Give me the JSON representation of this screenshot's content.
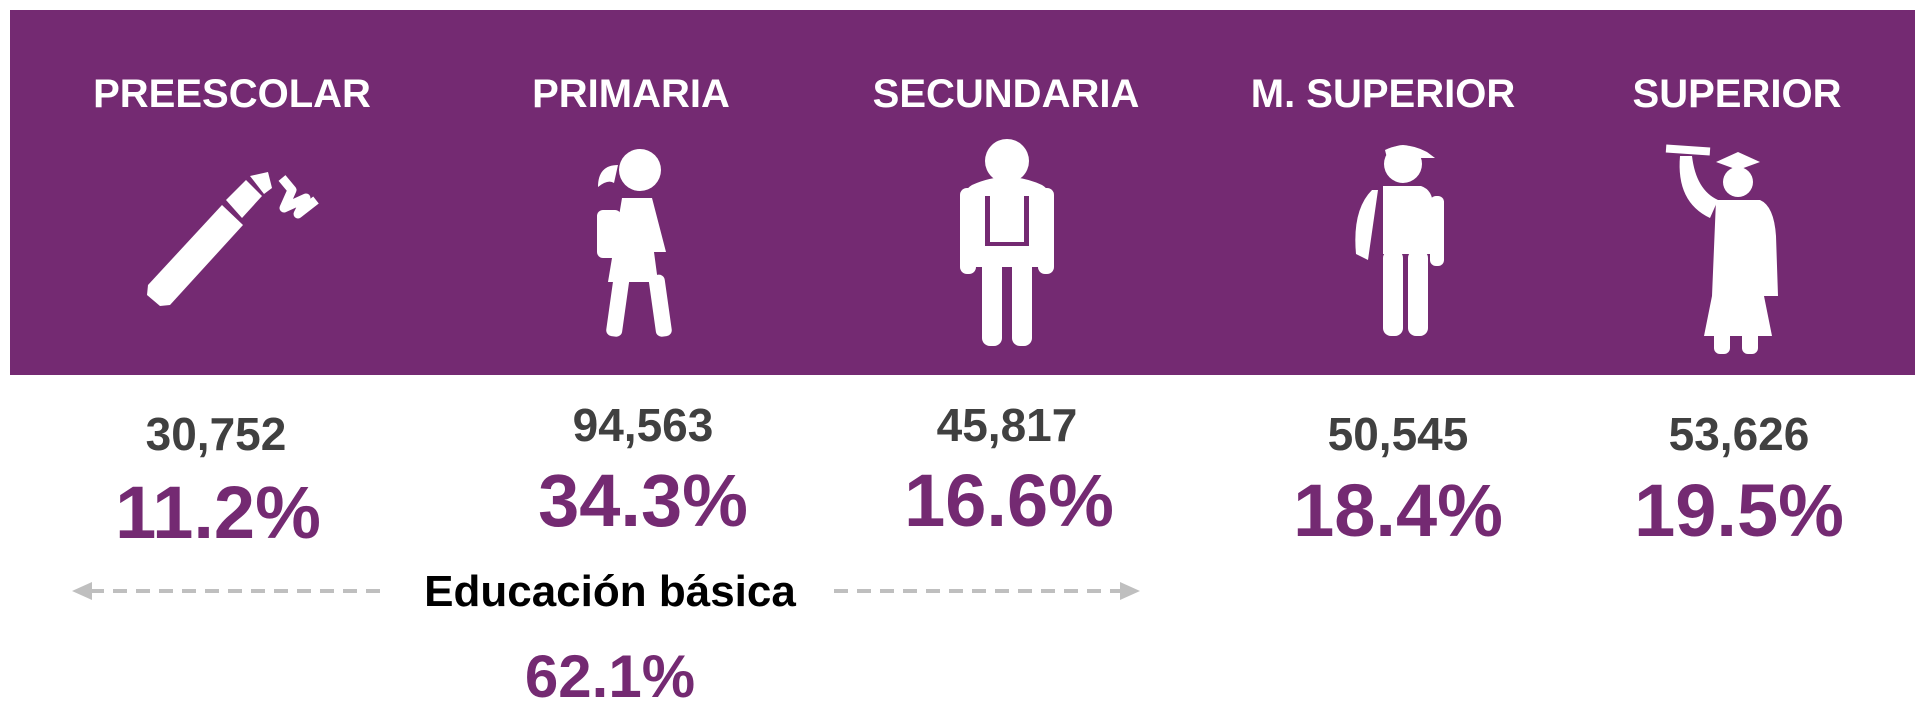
{
  "levels": [
    {
      "name": "PREESCOLAR",
      "count": "30,752",
      "percent": "11.2%"
    },
    {
      "name": "PRIMARIA",
      "count": "94,563",
      "percent": "34.3%"
    },
    {
      "name": "SECUNDARIA",
      "count": "45,817",
      "percent": "16.6%"
    },
    {
      "name": "M. SUPERIOR",
      "count": "50,545",
      "percent": "18.4%"
    },
    {
      "name": "SUPERIOR",
      "count": "53,626",
      "percent": "19.5%"
    }
  ],
  "basic": {
    "label": "Educación básica",
    "percent": "62.1%"
  }
}
